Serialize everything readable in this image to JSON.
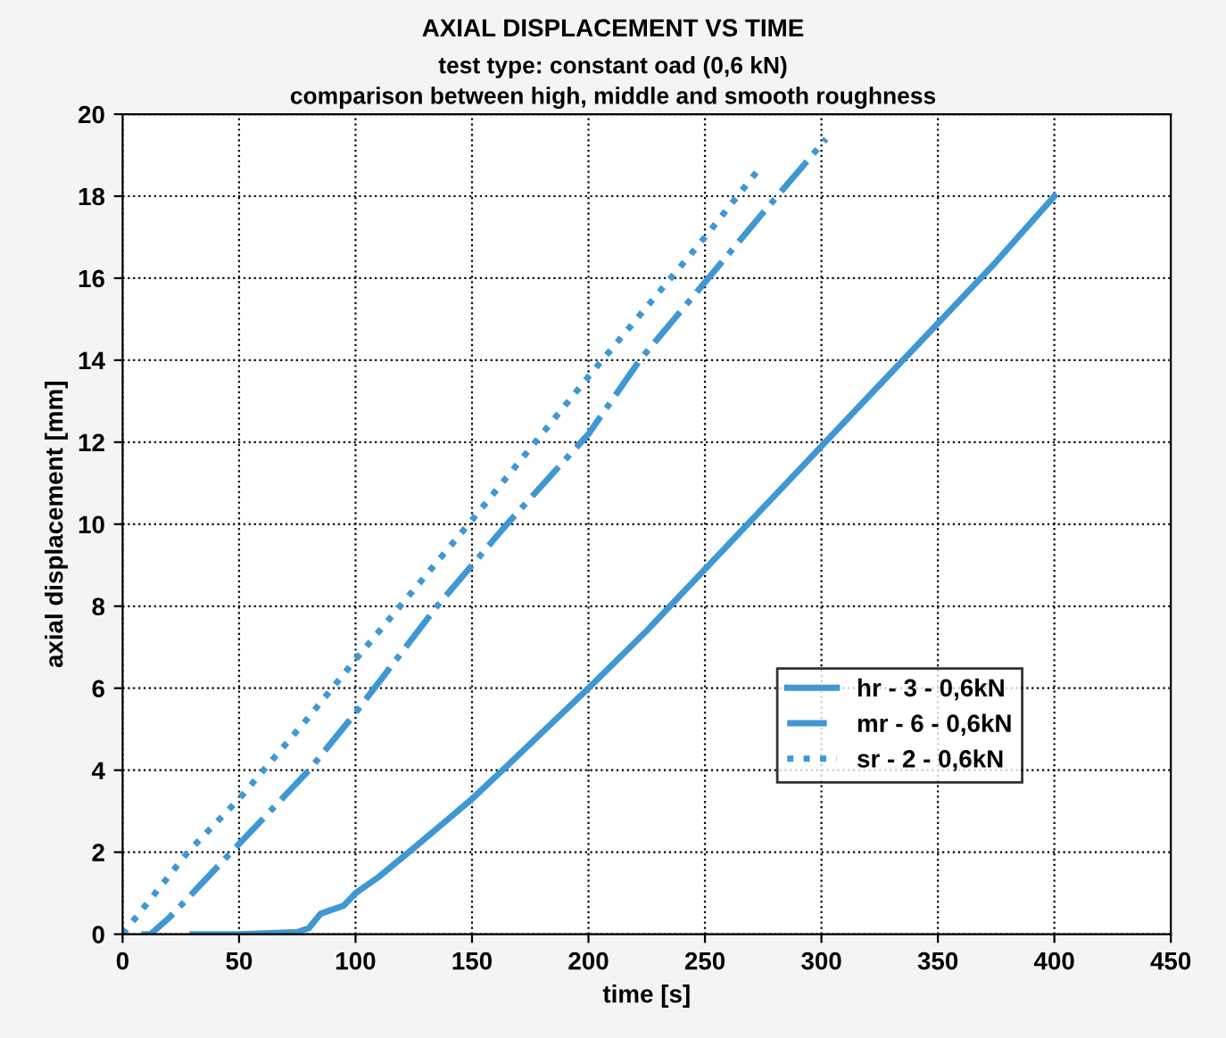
{
  "chart_data": {
    "type": "line",
    "title": "AXIAL DISPLACEMENT VS TIME",
    "subtitle": "test type: constant oad (0,6 kN)\ncomparison between high, middle and smooth roughness",
    "xlabel": "time [s]",
    "ylabel": "axial displacement [mm]",
    "xlim": [
      0,
      450
    ],
    "ylim": [
      0,
      20
    ],
    "xticks": [
      0,
      50,
      100,
      150,
      200,
      250,
      300,
      350,
      400,
      450
    ],
    "yticks": [
      0,
      2,
      4,
      6,
      8,
      10,
      12,
      14,
      16,
      18,
      20
    ],
    "grid": true,
    "legend": "lower right",
    "series": [
      {
        "name": "hr - 3 - 0,6kN",
        "color": "#3f97d4",
        "line_style": "solid",
        "x": [
          30,
          50,
          75,
          80,
          85,
          95,
          100,
          110,
          125,
          150,
          165,
          200,
          225,
          250,
          275,
          300,
          325,
          350,
          375,
          400
        ],
        "values": [
          0,
          0,
          0.05,
          0.15,
          0.5,
          0.7,
          1.0,
          1.4,
          2.1,
          3.3,
          4.1,
          6.0,
          7.4,
          8.9,
          10.4,
          11.9,
          13.4,
          14.9,
          16.4,
          18.0
        ]
      },
      {
        "name": "mr - 6 - 0,6kN",
        "color": "#3f97d4",
        "line_style": "dashdot",
        "x": [
          8,
          12,
          20,
          30,
          50,
          80,
          100,
          135,
          165,
          200,
          222,
          250,
          275,
          302
        ],
        "values": [
          0,
          0,
          0.4,
          1.0,
          2.2,
          4.0,
          5.4,
          8.0,
          10.0,
          12.2,
          14.0,
          15.9,
          17.6,
          19.4
        ]
      },
      {
        "name": "sr - 2 - 0,6kN",
        "color": "#3f97d4",
        "line_style": "dotted",
        "x": [
          0,
          28,
          50,
          80,
          100,
          150,
          200,
          250,
          273
        ],
        "values": [
          0,
          2.0,
          3.3,
          5.3,
          6.7,
          10.1,
          13.6,
          17.0,
          18.65
        ]
      }
    ]
  }
}
